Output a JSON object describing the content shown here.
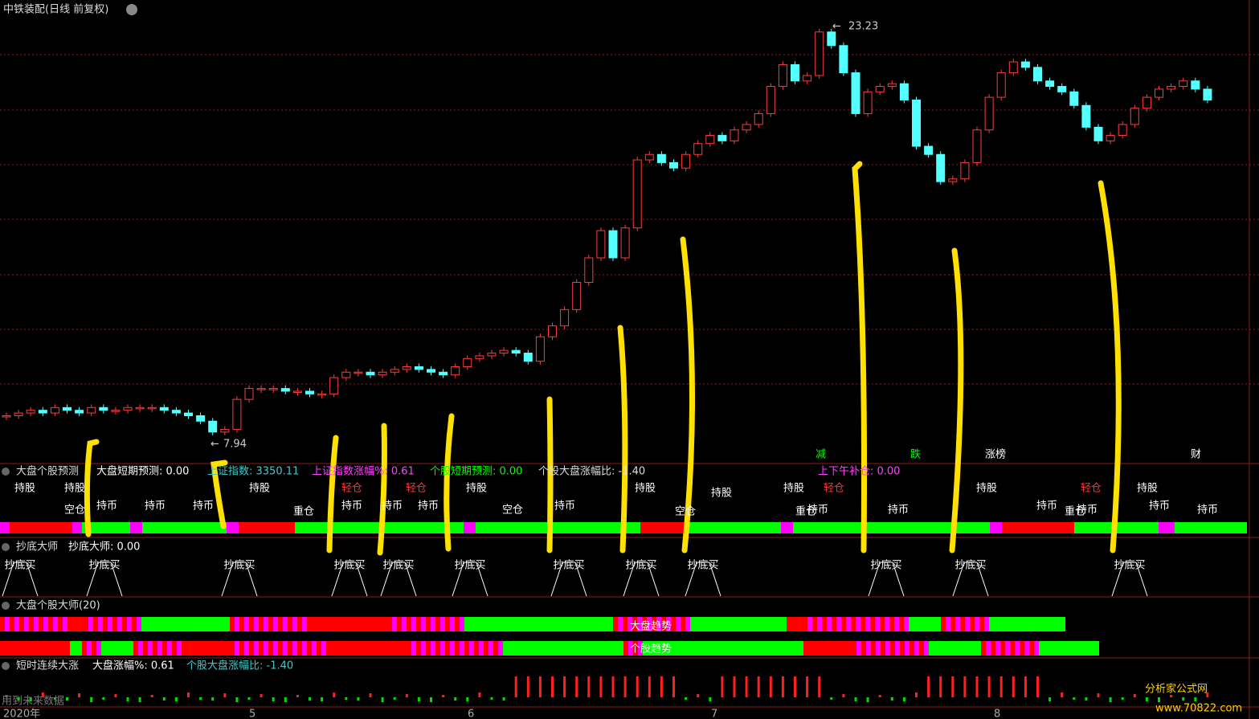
{
  "header": {
    "title": "中铁装配(日线 前复权)"
  },
  "main_chart": {
    "high_label": "23.23",
    "low_label": "7.94",
    "closes": [
      8.9,
      9.0,
      9.1,
      9.0,
      9.2,
      9.1,
      9.0,
      9.2,
      9.1,
      9.1,
      9.2,
      9.2,
      9.2,
      9.1,
      9.0,
      8.9,
      8.7,
      8.3,
      8.4,
      9.5,
      9.9,
      9.9,
      9.9,
      9.8,
      9.8,
      9.7,
      9.7,
      10.3,
      10.5,
      10.5,
      10.4,
      10.5,
      10.6,
      10.7,
      10.6,
      10.5,
      10.4,
      10.7,
      11.0,
      11.1,
      11.2,
      11.3,
      11.2,
      10.9,
      11.8,
      12.2,
      12.8,
      13.8,
      14.7,
      15.7,
      14.7,
      15.8,
      18.3,
      18.5,
      18.2,
      18.0,
      18.5,
      18.9,
      19.2,
      19.0,
      19.4,
      19.6,
      20.0,
      21.0,
      21.8,
      21.2,
      21.4,
      23.0,
      22.5,
      21.5,
      20.0,
      20.8,
      21.0,
      21.1,
      20.5,
      18.8,
      18.5,
      17.5,
      17.6,
      18.2,
      19.4,
      20.6,
      21.5,
      21.9,
      21.7,
      21.2,
      21.0,
      20.8,
      20.3,
      19.5,
      19.0,
      19.2,
      19.6,
      20.2,
      20.6,
      20.9,
      21.0,
      21.2,
      20.9,
      20.5
    ]
  },
  "panel1": {
    "title": "大盘个股预测",
    "items": [
      "大盘短期预测: 0.00",
      "上证指数: 3350.11",
      "上证指数涨幅%: 0.61",
      "个股短期预测: 0.00",
      "个股大盘涨幅比: -1.40"
    ],
    "signals": [
      "减",
      "跌",
      "涨榜",
      "财",
      "上下午补仓: 0.00"
    ],
    "labels": [
      "持股",
      "持币",
      "空仓",
      "重仓",
      "轻仓"
    ]
  },
  "panel2": {
    "title": "抄底大师",
    "value": "抄底大师: 0.00",
    "signal": "抄底买"
  },
  "panel3": {
    "title": "大盘个股大师(20)",
    "row1": "大盘趋势",
    "row2": "个股趋势"
  },
  "panel4": {
    "title": "短时连续大涨",
    "items": [
      "大盘涨幅%: 0.61",
      "个股大盘涨幅比: -1.40"
    ],
    "note": "用到未来数据"
  },
  "x_axis": {
    "labels": [
      "2020年",
      "5",
      "6",
      "7",
      "8"
    ]
  },
  "watermark": {
    "name": "分析家公式网",
    "url": "www.70822.com"
  }
}
